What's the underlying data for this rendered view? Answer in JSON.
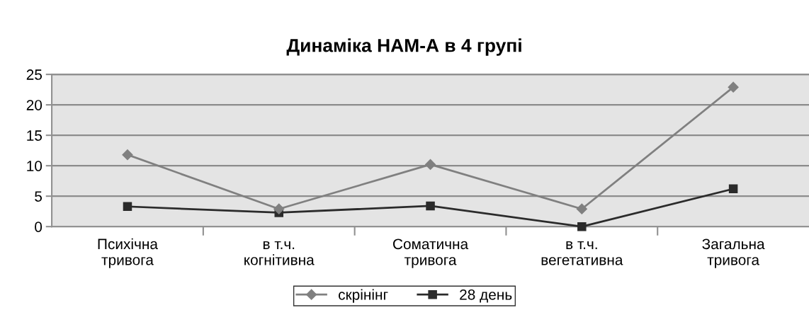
{
  "chart_data": {
    "type": "line",
    "title": "Динаміка НАМ-А в 4 групі",
    "categories": [
      "Психічна\nтривога",
      "в т.ч.\nкогнітивна",
      "Соматична\nтривога",
      "в т.ч.\nвегетативна",
      "Загальна\nтривога"
    ],
    "series": [
      {
        "name": "скрінінг",
        "color": "#808080",
        "marker": "diamond",
        "values": [
          11.8,
          2.9,
          10.2,
          2.9,
          22.9
        ]
      },
      {
        "name": "28 день",
        "color": "#2b2b2b",
        "marker": "square",
        "values": [
          3.3,
          2.3,
          3.4,
          0,
          6.2
        ]
      }
    ],
    "ylim": [
      0,
      25
    ],
    "yticks": [
      0,
      5,
      10,
      15,
      20,
      25
    ],
    "grid": "y",
    "legend": "bottom",
    "line_style": "solid"
  }
}
